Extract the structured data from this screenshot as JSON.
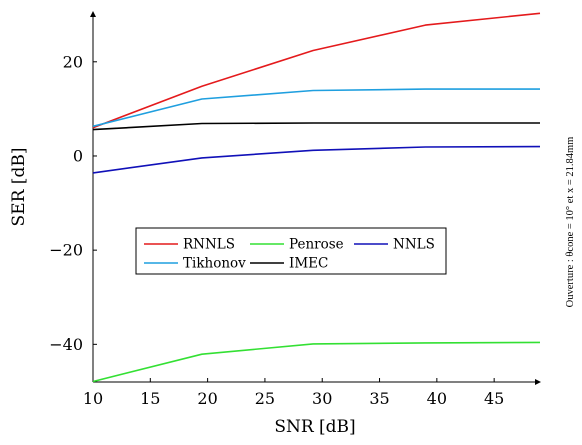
{
  "chart_data": {
    "type": "line",
    "xlabel": "SNR [dB]",
    "ylabel": "SER [dB]",
    "xlim": [
      10,
      49
    ],
    "ylim": [
      -48,
      31
    ],
    "xticks": [
      10,
      15,
      20,
      25,
      30,
      35,
      40,
      45
    ],
    "yticks": [
      -40,
      -20,
      0,
      20
    ],
    "ytick_labels": [
      "−40",
      "−20",
      "0",
      "20"
    ],
    "grid": false,
    "legend_position": "center-left",
    "x": [
      10,
      19.5,
      29.2,
      39,
      49
    ],
    "series": [
      {
        "name": "RNNLS",
        "color": "#e41a1c",
        "values": [
          6.0,
          14.8,
          22.4,
          27.8,
          30.3
        ]
      },
      {
        "name": "Penrose",
        "color": "#33e033",
        "values": [
          -47.9,
          -42.1,
          -39.9,
          -39.7,
          -39.6
        ]
      },
      {
        "name": "NNLS",
        "color": "#1010b8",
        "values": [
          -3.6,
          -0.4,
          1.2,
          1.9,
          2.0
        ]
      },
      {
        "name": "Tikhonov",
        "color": "#1f9fdf",
        "values": [
          6.3,
          12.1,
          13.9,
          14.2,
          14.2
        ]
      },
      {
        "name": "IMEC",
        "color": "#000000",
        "values": [
          5.6,
          6.9,
          7.0,
          7.0,
          7.0
        ]
      }
    ],
    "side_note": "Ouverture : θcone = 10° et x = 21.84mm"
  }
}
